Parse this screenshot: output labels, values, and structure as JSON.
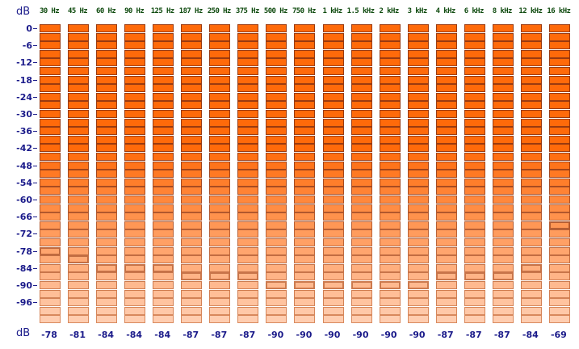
{
  "unit_label_top": "dB",
  "unit_label_bottom": "dB",
  "bands": [
    "30 Hz",
    "45 Hz",
    "60 Hz",
    "90 Hz",
    "125 Hz",
    "187 Hz",
    "250 Hz",
    "375 Hz",
    "500 Hz",
    "750 Hz",
    "1 kHz",
    "1.5 kHz",
    "2 kHz",
    "3 kHz",
    "4 kHz",
    "6 kHz",
    "8 kHz",
    "12 kHz",
    "16 kHz"
  ],
  "db_scale": [
    "0",
    "-6",
    "-12",
    "-18",
    "-24",
    "-30",
    "-36",
    "-42",
    "-48",
    "-54",
    "-60",
    "-66",
    "-72",
    "-78",
    "-84",
    "-90",
    "-96"
  ],
  "peak_values": [
    "-78",
    "-81",
    "-84",
    "-84",
    "-84",
    "-87",
    "-87",
    "-87",
    "-90",
    "-90",
    "-90",
    "-90",
    "-90",
    "-90",
    "-87",
    "-87",
    "-87",
    "-84",
    "-69"
  ],
  "segment_step_db": 3,
  "segment_count": 35,
  "colors": {
    "segment_bright": "#ff6a0a",
    "segment_pale": "#ffcdb0",
    "segment_border": "#9a3a10",
    "peak_border": "#000000",
    "scale_text": "#1a1a8a",
    "band_text": "#0e4a0e"
  }
}
